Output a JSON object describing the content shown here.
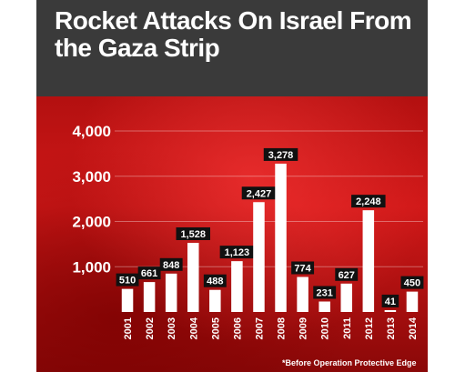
{
  "header": {
    "title": "Rocket Attacks On Israel From the Gaza Strip"
  },
  "footnote": "*Before Operation Protective Edge",
  "colors": {
    "header_bg": "#3a3a3a",
    "plot_bg": "#c41414",
    "bar": "#ffffff",
    "label_bg": "#111111"
  },
  "chart_data": {
    "type": "bar",
    "title": "Rocket Attacks On Israel From the Gaza Strip",
    "xlabel": "",
    "ylabel": "",
    "categories": [
      "2001",
      "2002",
      "2003",
      "2004",
      "2005",
      "2006",
      "2007",
      "2008",
      "2009",
      "2010",
      "2011",
      "2012",
      "2013",
      "2014"
    ],
    "values": [
      510,
      661,
      848,
      1528,
      488,
      1123,
      2427,
      3278,
      774,
      231,
      627,
      2248,
      41,
      450
    ],
    "value_labels": [
      "510",
      "661",
      "848",
      "1,528",
      "488",
      "1,123",
      "2,427",
      "3,278",
      "774",
      "231",
      "627",
      "2,248",
      "41",
      "450"
    ],
    "yticks": [
      1000,
      2000,
      3000,
      4000
    ],
    "ytick_labels": [
      "1,000",
      "2,000",
      "3,000",
      "4,000"
    ],
    "ylim": [
      0,
      4000
    ],
    "grid": true,
    "legend": "none"
  }
}
